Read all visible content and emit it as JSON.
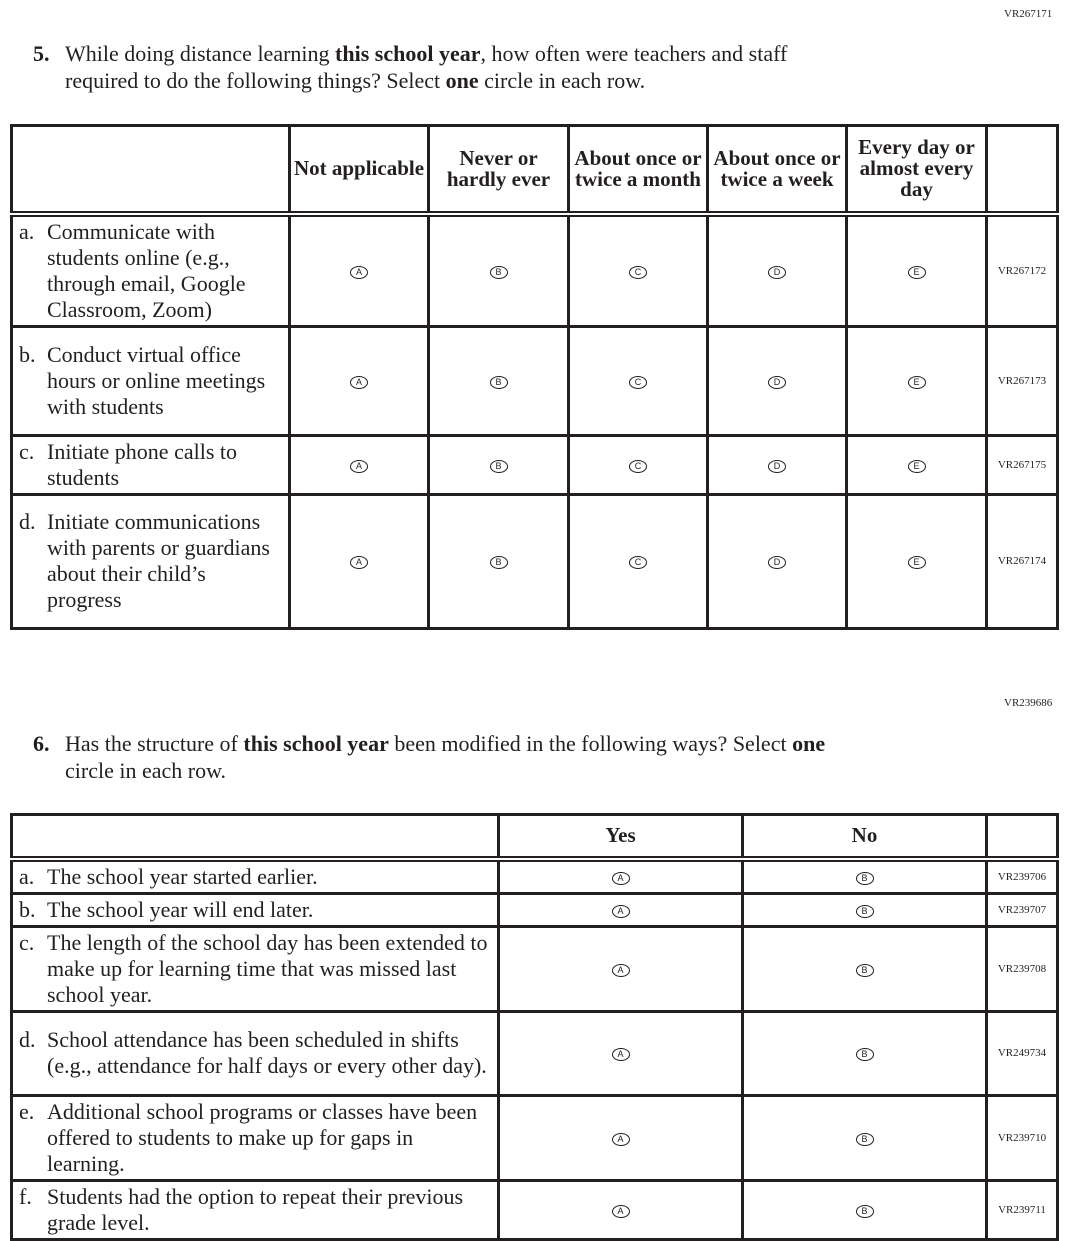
{
  "page_code": "VR267171",
  "q5": {
    "number": "5.",
    "text_parts": [
      "While doing distance learning ",
      "this school year",
      ", how often were teachers and staff",
      "required to do the following things? Select ",
      "one",
      " circle in each row."
    ],
    "columns": [
      "Not applicable",
      "Never or hardly ever",
      "About once or twice a month",
      "About once or twice a week",
      "Every day or almost every day"
    ],
    "rows": [
      {
        "letter": "a.",
        "text": "Communicate with students online (e.g., through email, Google Classroom, Zoom)",
        "code": "VR267172"
      },
      {
        "letter": "b.",
        "text": "Conduct virtual office hours or online meetings with students",
        "code": "VR267173"
      },
      {
        "letter": "c.",
        "text": "Initiate phone calls to students",
        "code": "VR267175"
      },
      {
        "letter": "d.",
        "text": "Initiate communications with parents or guardians about their child’s progress",
        "code": "VR267174"
      }
    ],
    "bubbles": [
      "A",
      "B",
      "C",
      "D",
      "E"
    ]
  },
  "q6_code": "VR239686",
  "q6": {
    "number": "6.",
    "text_parts": [
      "Has the structure of ",
      "this school year",
      " been modified in the following ways? Select ",
      "one",
      "circle in each row."
    ],
    "columns": [
      "Yes",
      "No"
    ],
    "rows": [
      {
        "letter": "a.",
        "text": "The school year started earlier.",
        "code": "VR239706"
      },
      {
        "letter": "b.",
        "text": "The school year will end later.",
        "code": "VR239707"
      },
      {
        "letter": "c.",
        "text": "The length of the school day has been extended to make up for learning time that was missed last school year.",
        "code": "VR239708"
      },
      {
        "letter": "d.",
        "text": "School attendance has been scheduled in shifts (e.g., attendance for half days or every other day).",
        "code": "VR249734"
      },
      {
        "letter": "e.",
        "text": "Additional school programs or classes have been offered to students to make up for gaps in learning.",
        "code": "VR239710"
      },
      {
        "letter": "f.",
        "text": "Students had the option to repeat their previous grade level.",
        "code": "VR239711"
      }
    ],
    "bubbles": [
      "A",
      "B"
    ]
  }
}
